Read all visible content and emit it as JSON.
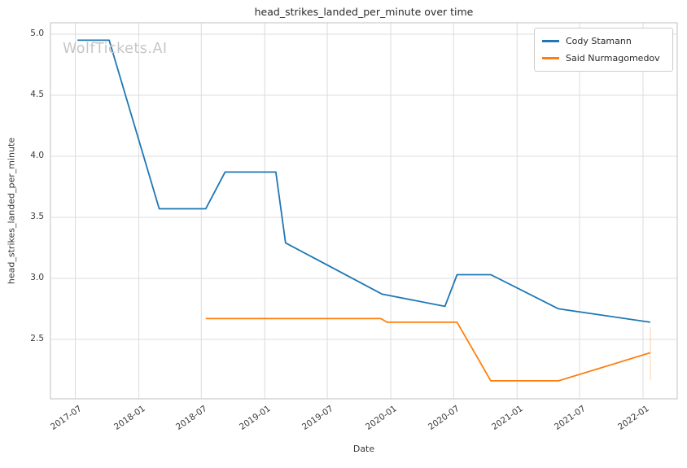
{
  "watermark": {
    "text": "WolfTickets.AI",
    "color": "#c6c6c6"
  },
  "chart_data": {
    "type": "line",
    "title": "head_strikes_landed_per_minute over time",
    "xlabel": "Date",
    "ylabel": "head_strikes_landed_per_minute",
    "grid": true,
    "legend_position": "top-right",
    "x_axis": {
      "ticks": [
        "2017-07",
        "2018-01",
        "2018-07",
        "2019-01",
        "2019-07",
        "2020-01",
        "2020-07",
        "2021-01",
        "2021-07",
        "2022-01"
      ],
      "range": [
        "2017-04-20",
        "2022-04-10"
      ]
    },
    "y_axis": {
      "ticks": [
        "5.0",
        "4.5",
        "4.0",
        "3.5",
        "3.0",
        "2.5"
      ],
      "tick_values": [
        5.0,
        4.5,
        4.0,
        3.5,
        3.0,
        2.5
      ],
      "range": [
        2.013,
        5.093
      ]
    },
    "series": [
      {
        "name": "Cody Stamann",
        "color": "#1f77b4",
        "x": [
          "2017-07-07",
          "2017-10-07",
          "2018-03-01",
          "2018-07-14",
          "2018-09-08",
          "2019-02-02",
          "2019-03-02",
          "2019-12-07",
          "2020-06-06",
          "2020-07-11",
          "2020-10-17",
          "2021-05-01",
          "2022-01-22"
        ],
        "y": [
          4.95,
          4.95,
          3.57,
          3.57,
          3.87,
          3.87,
          3.29,
          2.87,
          2.77,
          3.03,
          3.03,
          2.75,
          2.64
        ]
      },
      {
        "name": "Said Nurmagomedov",
        "color": "#ff7f0e",
        "x": [
          "2018-07-14",
          "2019-12-03",
          "2019-12-21",
          "2020-07-11",
          "2020-10-17",
          "2021-05-01",
          "2022-01-22"
        ],
        "y": [
          2.67,
          2.67,
          2.64,
          2.64,
          2.16,
          2.16,
          2.39
        ]
      }
    ],
    "annotations": [
      {
        "type": "vline",
        "x": "2022-01-22",
        "y_from": 2.165,
        "y_to": 2.6,
        "color": "#ff7f0e",
        "opacity": 0.3
      }
    ]
  }
}
